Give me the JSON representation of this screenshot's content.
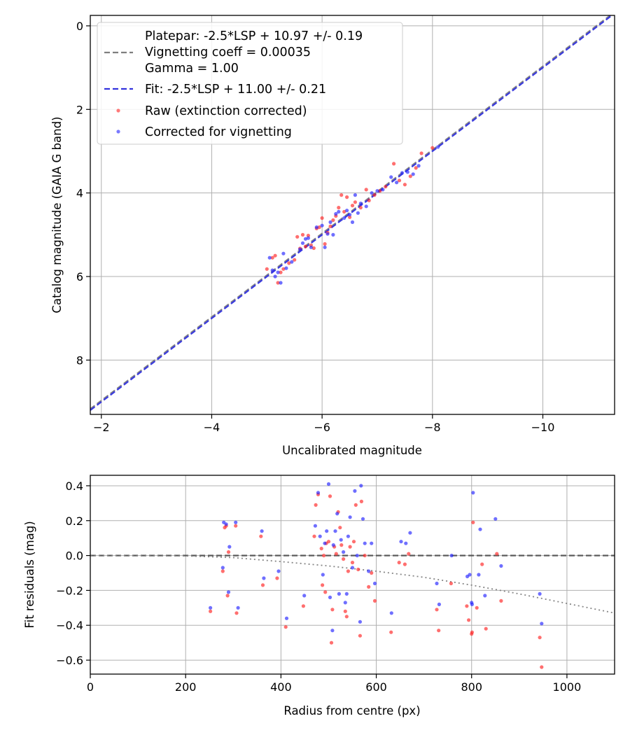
{
  "chart_data": [
    {
      "type": "scatter",
      "title": "",
      "xlabel": "Uncalibrated magnitude",
      "ylabel": "Catalog magnitude (GAIA G band)",
      "xlim": [
        -1.8,
        -11.3
      ],
      "ylim": [
        9.3,
        -0.25
      ],
      "x_axis_inverted": true,
      "y_axis_inverted": true,
      "grid": true,
      "xticks": [
        -2,
        -4,
        -6,
        -8,
        -10
      ],
      "xtick_labels": [
        "−2",
        "−4",
        "−6",
        "−8",
        "−10"
      ],
      "yticks": [
        0,
        2,
        4,
        6,
        8
      ],
      "ytick_labels": [
        "0",
        "2",
        "4",
        "6",
        "8"
      ],
      "legend_location": "upper-left",
      "legend": [
        "Platepar: -2.5*LSP + 10.97 +/- 0.19",
        "Vignetting coeff = 0.00035",
        "Gamma = 1.00",
        "Fit: -2.5*LSP + 11.00 +/- 0.21",
        "Raw (extinction corrected)",
        "Corrected for vignetting"
      ],
      "lines": [
        {
          "name": "Platepar",
          "slope": -2.5,
          "intercept": 10.97,
          "style": "dashed",
          "color": "#7f7f7f"
        },
        {
          "name": "Fit",
          "slope": -2.5,
          "intercept": 11.0,
          "style": "dashed",
          "color": "#3333dd"
        }
      ],
      "series": [
        {
          "name": "Raw (extinction corrected)",
          "color": "#ff2222",
          "points": [
            [
              -5.0,
              5.82
            ],
            [
              -5.1,
              5.55
            ],
            [
              -5.15,
              5.5
            ],
            [
              -5.2,
              6.15
            ],
            [
              -5.25,
              5.9
            ],
            [
              -5.3,
              5.82
            ],
            [
              -5.4,
              5.68
            ],
            [
              -5.5,
              5.6
            ],
            [
              -5.55,
              5.05
            ],
            [
              -5.6,
              5.33
            ],
            [
              -5.65,
              5.0
            ],
            [
              -5.7,
              5.28
            ],
            [
              -5.75,
              5.02
            ],
            [
              -5.8,
              5.25
            ],
            [
              -5.85,
              5.32
            ],
            [
              -5.9,
              4.85
            ],
            [
              -5.95,
              4.82
            ],
            [
              -6.0,
              4.6
            ],
            [
              -6.05,
              5.22
            ],
            [
              -6.1,
              4.95
            ],
            [
              -6.15,
              4.8
            ],
            [
              -6.2,
              4.65
            ],
            [
              -6.25,
              4.55
            ],
            [
              -6.3,
              4.35
            ],
            [
              -6.35,
              4.05
            ],
            [
              -6.4,
              4.45
            ],
            [
              -6.45,
              4.1
            ],
            [
              -6.5,
              4.58
            ],
            [
              -6.55,
              4.3
            ],
            [
              -6.6,
              4.22
            ],
            [
              -6.7,
              4.35
            ],
            [
              -6.8,
              3.92
            ],
            [
              -6.85,
              4.18
            ],
            [
              -6.95,
              4.05
            ],
            [
              -7.05,
              3.95
            ],
            [
              -7.15,
              3.85
            ],
            [
              -7.3,
              3.3
            ],
            [
              -7.4,
              3.7
            ],
            [
              -7.5,
              3.8
            ],
            [
              -7.6,
              3.6
            ],
            [
              -7.7,
              3.4
            ],
            [
              -7.8,
              3.05
            ],
            [
              -8.0,
              2.92
            ]
          ]
        },
        {
          "name": "Corrected for vignetting",
          "color": "#2222ff",
          "points": [
            [
              -5.05,
              5.55
            ],
            [
              -5.1,
              5.85
            ],
            [
              -5.15,
              6.0
            ],
            [
              -5.2,
              5.9
            ],
            [
              -5.25,
              6.15
            ],
            [
              -5.3,
              5.45
            ],
            [
              -5.35,
              5.8
            ],
            [
              -5.45,
              5.65
            ],
            [
              -5.6,
              5.35
            ],
            [
              -5.65,
              5.2
            ],
            [
              -5.7,
              5.1
            ],
            [
              -5.75,
              5.08
            ],
            [
              -5.8,
              5.3
            ],
            [
              -5.9,
              4.82
            ],
            [
              -6.0,
              4.78
            ],
            [
              -6.05,
              5.3
            ],
            [
              -6.1,
              4.98
            ],
            [
              -6.15,
              4.7
            ],
            [
              -6.2,
              5.0
            ],
            [
              -6.25,
              4.5
            ],
            [
              -6.3,
              4.45
            ],
            [
              -6.4,
              4.6
            ],
            [
              -6.45,
              4.42
            ],
            [
              -6.5,
              4.52
            ],
            [
              -6.55,
              4.7
            ],
            [
              -6.6,
              4.05
            ],
            [
              -6.65,
              4.48
            ],
            [
              -6.7,
              4.25
            ],
            [
              -6.8,
              4.32
            ],
            [
              -6.9,
              4.0
            ],
            [
              -7.0,
              3.95
            ],
            [
              -7.1,
              3.92
            ],
            [
              -7.25,
              3.62
            ],
            [
              -7.35,
              3.75
            ],
            [
              -7.45,
              3.52
            ],
            [
              -7.55,
              3.5
            ],
            [
              -7.65,
              3.55
            ],
            [
              -7.75,
              3.35
            ],
            [
              -8.1,
              2.9
            ]
          ]
        }
      ]
    },
    {
      "type": "scatter",
      "title": "",
      "xlabel": "Radius from centre (px)",
      "ylabel": "Fit residuals (mag)",
      "xlim": [
        0,
        1100
      ],
      "ylim": [
        -0.68,
        0.46
      ],
      "grid": true,
      "xticks": [
        0,
        200,
        400,
        600,
        800,
        1000
      ],
      "xtick_labels": [
        "0",
        "200",
        "400",
        "600",
        "800",
        "1000"
      ],
      "yticks": [
        0.4,
        0.2,
        0.0,
        -0.2,
        -0.4,
        -0.6
      ],
      "ytick_labels": [
        "0.4",
        "0.2",
        "0.0",
        "−0.2",
        "−0.4",
        "−0.6"
      ],
      "lines": [
        {
          "name": "zero",
          "style": "dashed",
          "color": "#555555",
          "points": [
            [
              0,
              0
            ],
            [
              1100,
              0
            ]
          ]
        },
        {
          "name": "vignetting model",
          "style": "dotted",
          "color": "#7f7f7f",
          "points": [
            [
              0,
              0
            ],
            [
              200,
              -0.002
            ],
            [
              300,
              -0.012
            ],
            [
              400,
              -0.035
            ],
            [
              500,
              -0.06
            ],
            [
              600,
              -0.09
            ],
            [
              700,
              -0.125
            ],
            [
              800,
              -0.17
            ],
            [
              900,
              -0.22
            ],
            [
              1000,
              -0.275
            ],
            [
              1100,
              -0.33
            ]
          ]
        }
      ],
      "series": [
        {
          "name": "Raw",
          "color": "#ff2222",
          "points": [
            [
              252,
              -0.32
            ],
            [
              278,
              -0.09
            ],
            [
              282,
              0.16
            ],
            [
              285,
              0.17
            ],
            [
              288,
              -0.23
            ],
            [
              290,
              0.02
            ],
            [
              305,
              0.17
            ],
            [
              307,
              -0.33
            ],
            [
              358,
              0.11
            ],
            [
              362,
              -0.17
            ],
            [
              392,
              -0.13
            ],
            [
              410,
              -0.41
            ],
            [
              447,
              -0.29
            ],
            [
              470,
              0.11
            ],
            [
              473,
              0.29
            ],
            [
              478,
              0.35
            ],
            [
              485,
              0.04
            ],
            [
              487,
              -0.17
            ],
            [
              490,
              0.0
            ],
            [
              493,
              -0.21
            ],
            [
              495,
              0.07
            ],
            [
              500,
              0.08
            ],
            [
              503,
              0.34
            ],
            [
              506,
              -0.5
            ],
            [
              508,
              -0.31
            ],
            [
              512,
              0.05
            ],
            [
              516,
              0.01
            ],
            [
              520,
              0.25
            ],
            [
              524,
              0.16
            ],
            [
              527,
              0.06
            ],
            [
              531,
              -0.02
            ],
            [
              535,
              -0.32
            ],
            [
              538,
              -0.35
            ],
            [
              541,
              -0.09
            ],
            [
              545,
              0.05
            ],
            [
              550,
              -0.04
            ],
            [
              553,
              0.08
            ],
            [
              557,
              0.29
            ],
            [
              562,
              -0.08
            ],
            [
              566,
              -0.46
            ],
            [
              569,
              0.31
            ],
            [
              576,
              0.0
            ],
            [
              584,
              -0.18
            ],
            [
              590,
              -0.1
            ],
            [
              597,
              -0.26
            ],
            [
              631,
              -0.44
            ],
            [
              648,
              -0.04
            ],
            [
              660,
              -0.05
            ],
            [
              668,
              0.01
            ],
            [
              727,
              -0.31
            ],
            [
              731,
              -0.43
            ],
            [
              757,
              -0.16
            ],
            [
              790,
              -0.29
            ],
            [
              794,
              -0.37
            ],
            [
              800,
              -0.45
            ],
            [
              801,
              -0.44
            ],
            [
              803,
              0.19
            ],
            [
              811,
              -0.3
            ],
            [
              822,
              -0.05
            ],
            [
              830,
              -0.42
            ],
            [
              853,
              0.01
            ],
            [
              862,
              -0.26
            ],
            [
              943,
              -0.47
            ],
            [
              947,
              -0.64
            ]
          ]
        },
        {
          "name": "Corrected",
          "color": "#2222ff",
          "points": [
            [
              252,
              -0.3
            ],
            [
              278,
              -0.07
            ],
            [
              280,
              0.19
            ],
            [
              285,
              0.18
            ],
            [
              290,
              -0.21
            ],
            [
              292,
              0.05
            ],
            [
              305,
              0.19
            ],
            [
              310,
              -0.3
            ],
            [
              360,
              0.14
            ],
            [
              364,
              -0.13
            ],
            [
              395,
              -0.09
            ],
            [
              412,
              -0.36
            ],
            [
              449,
              -0.23
            ],
            [
              472,
              0.17
            ],
            [
              478,
              0.36
            ],
            [
              482,
              0.11
            ],
            [
              488,
              -0.11
            ],
            [
              492,
              0.07
            ],
            [
              496,
              0.14
            ],
            [
              500,
              0.41
            ],
            [
              503,
              -0.24
            ],
            [
              508,
              -0.43
            ],
            [
              510,
              0.06
            ],
            [
              514,
              0.14
            ],
            [
              518,
              0.24
            ],
            [
              522,
              -0.22
            ],
            [
              526,
              0.09
            ],
            [
              531,
              0.02
            ],
            [
              535,
              -0.27
            ],
            [
              538,
              -0.22
            ],
            [
              541,
              0.11
            ],
            [
              545,
              0.22
            ],
            [
              550,
              -0.07
            ],
            [
              555,
              0.37
            ],
            [
              560,
              0.0
            ],
            [
              566,
              -0.38
            ],
            [
              568,
              0.4
            ],
            [
              572,
              0.21
            ],
            [
              576,
              0.07
            ],
            [
              584,
              -0.09
            ],
            [
              590,
              0.07
            ],
            [
              597,
              -0.16
            ],
            [
              632,
              -0.33
            ],
            [
              652,
              0.08
            ],
            [
              662,
              0.07
            ],
            [
              671,
              0.13
            ],
            [
              727,
              -0.16
            ],
            [
              732,
              -0.28
            ],
            [
              758,
              0.0
            ],
            [
              791,
              -0.12
            ],
            [
              796,
              -0.11
            ],
            [
              800,
              -0.27
            ],
            [
              801,
              -0.28
            ],
            [
              803,
              0.36
            ],
            [
              815,
              -0.11
            ],
            [
              818,
              0.15
            ],
            [
              828,
              -0.23
            ],
            [
              850,
              0.21
            ],
            [
              862,
              -0.06
            ],
            [
              943,
              -0.22
            ],
            [
              947,
              -0.39
            ]
          ]
        }
      ]
    }
  ]
}
